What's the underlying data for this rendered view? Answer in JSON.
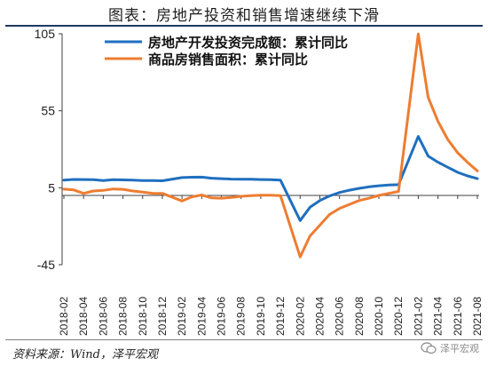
{
  "header": {
    "title": "图表：房地产投资和销售增速继续下滑"
  },
  "footer": {
    "source": "资料来源：Wind，泽平宏观",
    "watermark": "泽平宏观",
    "watermark_icon": "wechat-icon"
  },
  "colors": {
    "investment": "#1f6fbf",
    "sales": "#ed7d31",
    "axis": "#404040"
  },
  "chart_data": {
    "type": "line",
    "ylim": [
      -45,
      105
    ],
    "yticks": [
      105,
      55,
      5,
      -45
    ],
    "xtick_labels": [
      "2018-02",
      "2018-04",
      "2018-06",
      "2018-08",
      "2018-10",
      "2018-12",
      "2019-02",
      "2019-04",
      "2019-06",
      "2019-08",
      "2019-10",
      "2019-12",
      "2020-02",
      "2020-04",
      "2020-06",
      "2020-08",
      "2020-10",
      "2020-12",
      "2021-02",
      "2021-04",
      "2021-06",
      "2021-08"
    ],
    "x": [
      "2018-02",
      "2018-03",
      "2018-04",
      "2018-05",
      "2018-06",
      "2018-07",
      "2018-08",
      "2018-09",
      "2018-10",
      "2018-11",
      "2018-12",
      "2019-02",
      "2019-03",
      "2019-04",
      "2019-05",
      "2019-06",
      "2019-07",
      "2019-08",
      "2019-09",
      "2019-10",
      "2019-11",
      "2019-12",
      "2020-02",
      "2020-03",
      "2020-04",
      "2020-05",
      "2020-06",
      "2020-07",
      "2020-08",
      "2020-09",
      "2020-10",
      "2020-11",
      "2020-12",
      "2021-02",
      "2021-03",
      "2021-04",
      "2021-05",
      "2021-06",
      "2021-07",
      "2021-08"
    ],
    "series": [
      {
        "name": "房地产开发投资完成额：累计同比",
        "values": [
          9.9,
          10.4,
          10.3,
          10.2,
          9.7,
          10.2,
          10.1,
          9.9,
          9.7,
          9.7,
          9.5,
          11.6,
          11.8,
          11.9,
          11.2,
          10.9,
          10.6,
          10.5,
          10.5,
          10.3,
          10.2,
          9.9,
          -16.3,
          -7.7,
          -3.3,
          -0.3,
          1.9,
          3.4,
          4.6,
          5.6,
          6.3,
          6.8,
          7.0,
          38.3,
          25.6,
          21.6,
          18.3,
          15.0,
          12.7,
          10.9
        ]
      },
      {
        "name": "商品房销售面积：累计同比",
        "values": [
          4.1,
          3.6,
          1.3,
          2.9,
          3.3,
          4.2,
          4.0,
          2.9,
          2.2,
          1.4,
          1.3,
          -3.6,
          -0.9,
          0.3,
          -1.6,
          -1.8,
          -1.3,
          -0.6,
          -0.1,
          0.1,
          0.2,
          -0.1,
          -39.9,
          -26.3,
          -19.3,
          -12.3,
          -8.4,
          -5.8,
          -3.3,
          -1.8,
          0.0,
          1.3,
          2.6,
          104.9,
          63.8,
          48.1,
          36.3,
          27.7,
          21.5,
          15.9
        ]
      }
    ]
  }
}
